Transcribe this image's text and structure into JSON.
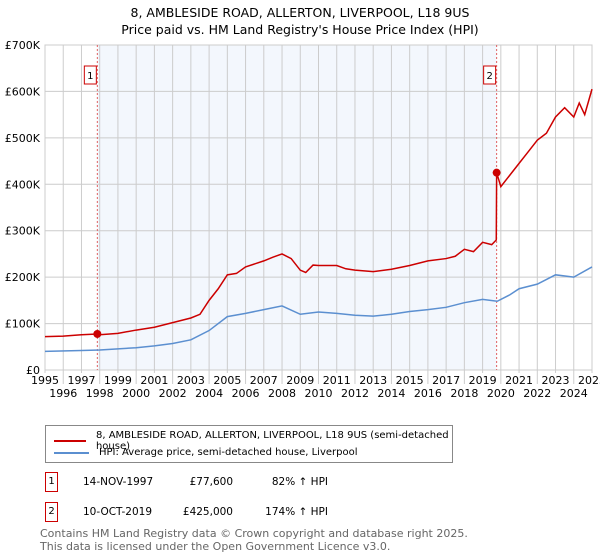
{
  "chart_data": {
    "type": "line",
    "title": "8, AMBLESIDE ROAD, ALLERTON, LIVERPOOL, L18 9US",
    "subtitle": "Price paid vs. HM Land Registry's House Price Index (HPI)",
    "xlim": [
      1995,
      2025
    ],
    "ylim": [
      0,
      700000
    ],
    "x_ticks": [
      "1995",
      "1996",
      "1997",
      "1998",
      "1999",
      "2000",
      "2001",
      "2002",
      "2003",
      "2004",
      "2005",
      "2006",
      "2007",
      "2008",
      "2009",
      "2010",
      "2011",
      "2012",
      "2013",
      "2014",
      "2015",
      "2016",
      "2017",
      "2018",
      "2019",
      "2020",
      "2021",
      "2022",
      "2023",
      "2024",
      "2025"
    ],
    "y_ticks": [
      {
        "v": 0,
        "label": "£0"
      },
      {
        "v": 100000,
        "label": "£100K"
      },
      {
        "v": 200000,
        "label": "£200K"
      },
      {
        "v": 300000,
        "label": "£300K"
      },
      {
        "v": 400000,
        "label": "£400K"
      },
      {
        "v": 500000,
        "label": "£500K"
      },
      {
        "v": 600000,
        "label": "£600K"
      },
      {
        "v": 700000,
        "label": "£700K"
      }
    ],
    "grid": true,
    "series": [
      {
        "name": "8, AMBLESIDE ROAD, ALLERTON, LIVERPOOL, L18 9US (semi-detached house)",
        "color": "#cc0000",
        "x": [
          1995,
          1996,
          1997,
          1997.87,
          1998,
          1999,
          2000,
          2001,
          2002,
          2003,
          2003.5,
          2004,
          2004.5,
          2005,
          2005.5,
          2006,
          2007,
          2007.5,
          2008,
          2008.5,
          2009,
          2009.3,
          2009.7,
          2010,
          2011,
          2011.5,
          2012,
          2013,
          2014,
          2015,
          2016,
          2017,
          2017.5,
          2018,
          2018.5,
          2019,
          2019.5,
          2019.75,
          2019.77,
          2020,
          2020.5,
          2021,
          2021.5,
          2022,
          2022.5,
          2023,
          2023.5,
          2024,
          2024.3,
          2024.6,
          2025
        ],
        "y": [
          72000,
          73000,
          76000,
          77600,
          76000,
          79000,
          86000,
          92000,
          102000,
          112000,
          120000,
          150000,
          175000,
          205000,
          208000,
          222000,
          235000,
          243000,
          250000,
          240000,
          215000,
          210000,
          226000,
          225000,
          225000,
          218000,
          215000,
          212000,
          217000,
          225000,
          235000,
          240000,
          245000,
          260000,
          255000,
          275000,
          270000,
          280000,
          425000,
          395000,
          420000,
          445000,
          470000,
          495000,
          510000,
          545000,
          565000,
          545000,
          575000,
          550000,
          605000
        ]
      },
      {
        "name": "HPI: Average price, semi-detached house, Liverpool",
        "color": "#5b8fd0",
        "x": [
          1995,
          1997,
          1998,
          2000,
          2001,
          2002,
          2003,
          2004,
          2005,
          2006,
          2007,
          2008,
          2009,
          2010,
          2011,
          2012,
          2013,
          2014,
          2015,
          2016,
          2017,
          2018,
          2019,
          2019.8,
          2020.5,
          2021,
          2022,
          2023,
          2024,
          2025
        ],
        "y": [
          40000,
          42000,
          43000,
          48000,
          52000,
          57000,
          65000,
          85000,
          115000,
          122000,
          130000,
          138000,
          120000,
          125000,
          122000,
          118000,
          116000,
          120000,
          126000,
          130000,
          135000,
          145000,
          152000,
          148000,
          162000,
          175000,
          185000,
          205000,
          200000,
          222000
        ]
      }
    ],
    "sales": [
      {
        "id": "1",
        "x": 1997.87,
        "y": 77600,
        "date": "14-NOV-1997",
        "price": "£77,600",
        "hpi": "82% ↑ HPI"
      },
      {
        "id": "2",
        "x": 2019.77,
        "y": 425000,
        "date": "10-OCT-2019",
        "price": "£425,000",
        "hpi": "174% ↑ HPI"
      }
    ],
    "legend_placement": "below"
  },
  "footer": {
    "line1": "Contains HM Land Registry data © Crown copyright and database right 2025.",
    "line2": "This data is licensed under the Open Government Licence v3.0."
  }
}
